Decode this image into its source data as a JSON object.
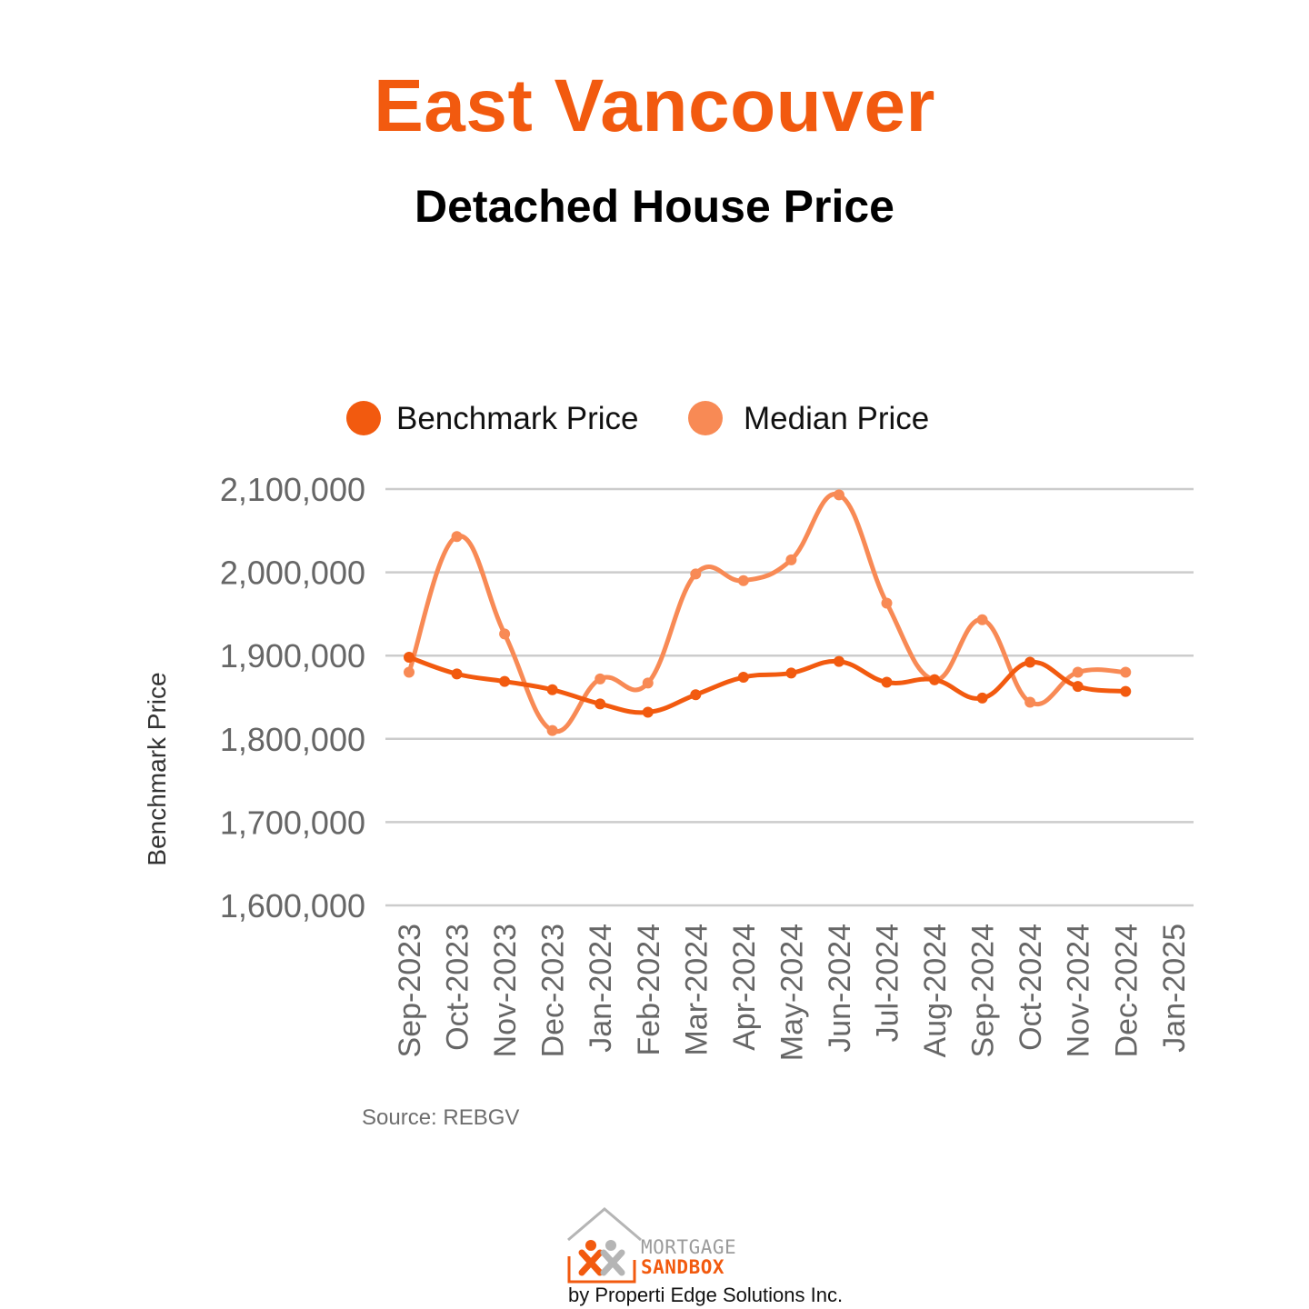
{
  "header": {
    "title": "East Vancouver",
    "subtitle": "Detached House Price"
  },
  "colors": {
    "title": "#f25a0f",
    "benchmark": "#f25a0f",
    "median": "#f88a55",
    "grid": "#cccccc",
    "axis_text": "#666666"
  },
  "chart_data": {
    "type": "line",
    "title": "",
    "ylabel": "Benchmark Price",
    "xlabel": "",
    "ylim": [
      1600000,
      2100000
    ],
    "yticks": [
      1600000,
      1700000,
      1800000,
      1900000,
      2000000,
      2100000
    ],
    "ytick_labels": [
      "1,600,000",
      "1,700,000",
      "1,800,000",
      "1,900,000",
      "2,000,000",
      "2,100,000"
    ],
    "categories": [
      "Sep-2023",
      "Oct-2023",
      "Nov-2023",
      "Dec-2023",
      "Jan-2024",
      "Feb-2024",
      "Mar-2024",
      "Apr-2024",
      "May-2024",
      "Jun-2024",
      "Jul-2024",
      "Aug-2024",
      "Sep-2024",
      "Oct-2024",
      "Nov-2024",
      "Dec-2024",
      "Jan-2025"
    ],
    "series": [
      {
        "name": "Benchmark Price",
        "color": "#f25a0f",
        "values": [
          1898000,
          1878000,
          1869000,
          1859000,
          1842000,
          1832000,
          1853000,
          1874000,
          1879000,
          1893000,
          1868000,
          1871000,
          1849000,
          1892000,
          1863000,
          1857000,
          null
        ]
      },
      {
        "name": "Median Price",
        "color": "#f88a55",
        "values": [
          1880000,
          2043000,
          1926000,
          1810000,
          1872000,
          1867000,
          1998000,
          1990000,
          2015000,
          2093000,
          1963000,
          1871000,
          1943000,
          1844000,
          1880000,
          1880000,
          null
        ]
      }
    ],
    "legend_position": "top",
    "grid": true
  },
  "footer": {
    "source": "Source: REBGV",
    "logo_line1": "MORTGAGE",
    "logo_line2": "SANDBOX",
    "logo_byline": "by Properti Edge Solutions Inc."
  }
}
